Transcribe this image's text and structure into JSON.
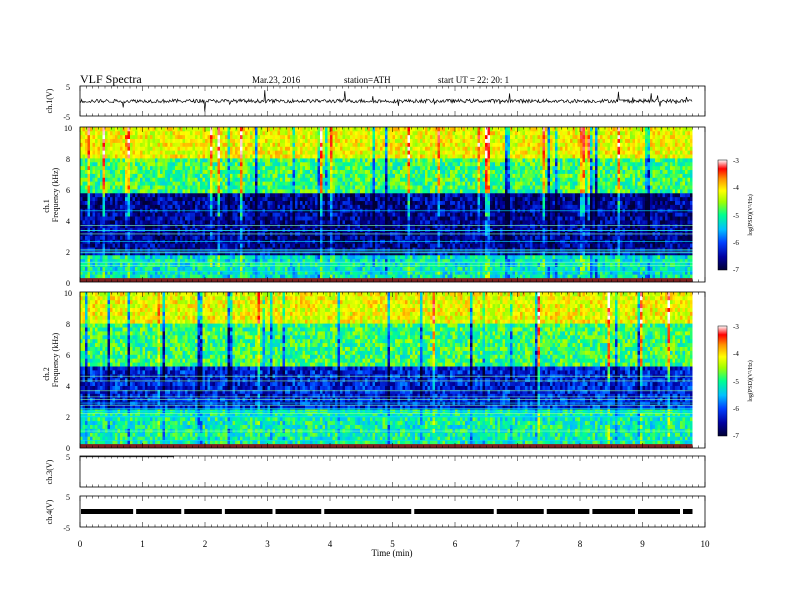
{
  "header": {
    "title": "VLF  Spectra",
    "date": "Mar.23, 2016",
    "station": "station=ATH",
    "start": "start  UT  =    22: 20: 1"
  },
  "colors": {
    "axis": "#000000",
    "colormap": [
      "#000033",
      "#0000a0",
      "#0040ff",
      "#00c0ff",
      "#00ff90",
      "#a0ff00",
      "#ffff00",
      "#ff9000",
      "#ff0000",
      "#ffffff"
    ]
  },
  "chart_data": [
    {
      "type": "line",
      "name": "ch1-waveform",
      "ylabel": "ch.1(V)",
      "xlim": [
        0,
        10
      ],
      "ylim": [
        -5,
        5
      ],
      "y_ticks": [
        "5",
        "-5"
      ],
      "baseline_value": 0,
      "noise_amplitude": 0.6,
      "data_end_min": 9.8
    },
    {
      "type": "heatmap",
      "name": "ch1-spectrogram",
      "ylabel_top": "ch.1",
      "ylabel": "Frequency  (kHz)",
      "xlim": [
        0,
        10
      ],
      "ylim": [
        0,
        10
      ],
      "y_ticks": [
        "0",
        "2",
        "4",
        "6",
        "8",
        "10"
      ],
      "colorbar": {
        "label": "log(PSD)(V²/Hz)",
        "range": [
          -7,
          -3
        ],
        "ticks": [
          "-3",
          "-4",
          "-5",
          "-6",
          "-7"
        ]
      },
      "bands_khz": [
        {
          "from": 0,
          "to": 1.8,
          "logpsd": -5.4
        },
        {
          "from": 1.8,
          "to": 5.8,
          "logpsd": -6.6
        },
        {
          "from": 5.8,
          "to": 8,
          "logpsd": -5.1
        },
        {
          "from": 8,
          "to": 10,
          "logpsd": -4.4
        }
      ]
    },
    {
      "type": "heatmap",
      "name": "ch2-spectrogram",
      "ylabel_top": "ch.2",
      "ylabel": "Frequency  (kHz)",
      "xlim": [
        0,
        10
      ],
      "ylim": [
        0,
        10
      ],
      "y_ticks": [
        "0",
        "2",
        "4",
        "6",
        "8",
        "10"
      ],
      "colorbar": {
        "label": "log(PSD)(V²/Hz)",
        "range": [
          -7,
          -3
        ],
        "ticks": [
          "-3",
          "-4",
          "-5",
          "-6",
          "-7"
        ]
      },
      "bands_khz": [
        {
          "from": 0,
          "to": 2.5,
          "logpsd": -5.3
        },
        {
          "from": 2.5,
          "to": 5.2,
          "logpsd": -6.3
        },
        {
          "from": 5.2,
          "to": 8,
          "logpsd": -5.1
        },
        {
          "from": 8,
          "to": 10,
          "logpsd": -4.4
        }
      ]
    },
    {
      "type": "line",
      "name": "ch3-waveform",
      "ylabel": "ch.3(V)",
      "xlim": [
        0,
        10
      ],
      "ylim": [
        -5,
        5
      ],
      "y_ticks": [
        "5"
      ],
      "baseline_value": 5,
      "data_end_min": 1.5
    },
    {
      "type": "line",
      "name": "ch4-waveform",
      "ylabel": "ch.4(V)",
      "xlim": [
        0,
        10
      ],
      "ylim": [
        -5,
        5
      ],
      "y_ticks": [
        "5",
        "-5"
      ],
      "baseline_value": 0,
      "data_end_min": 9.8,
      "gaps_min": [
        0.85,
        1.62,
        2.27,
        3.08,
        3.86,
        5.3,
        6.62,
        7.42,
        8.15,
        8.88,
        9.6
      ]
    }
  ],
  "x_axis": {
    "label": "Time  (min)",
    "ticks": [
      "0",
      "1",
      "2",
      "3",
      "4",
      "5",
      "6",
      "7",
      "8",
      "9",
      "10"
    ],
    "range": [
      0,
      10
    ]
  }
}
